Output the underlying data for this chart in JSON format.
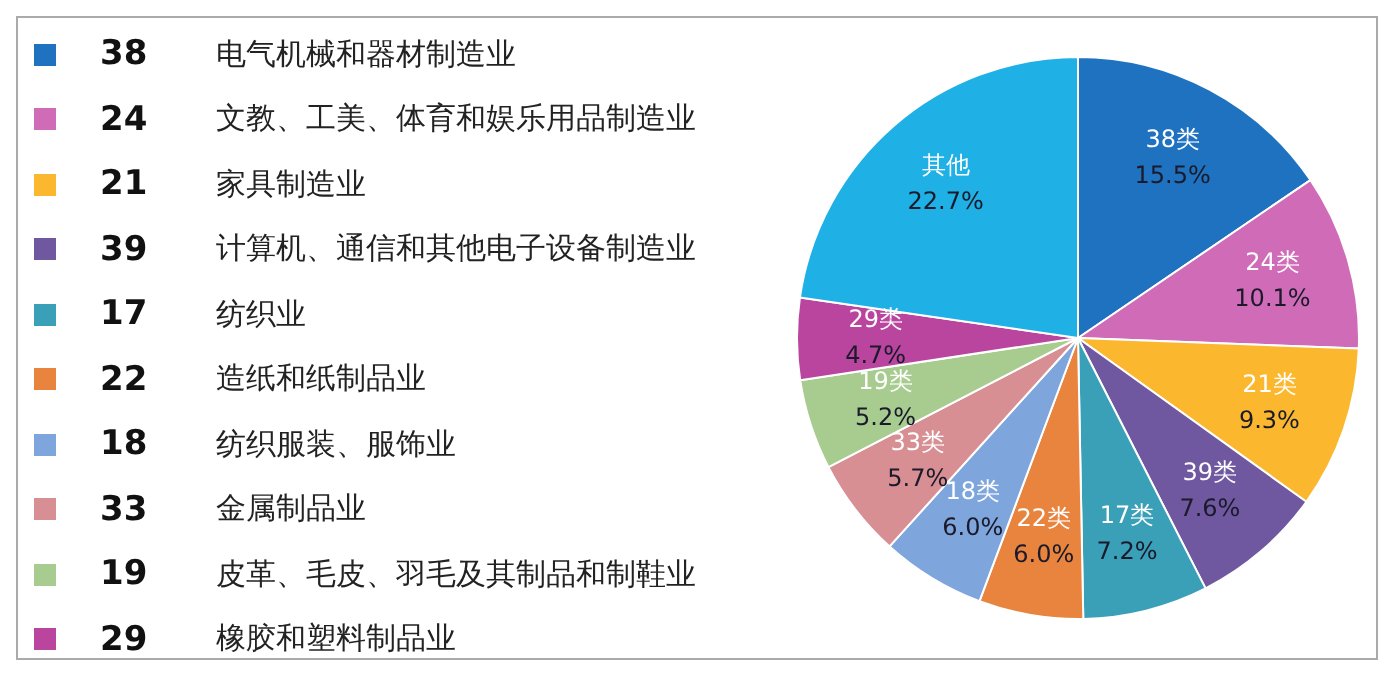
{
  "chart_data": {
    "type": "pie",
    "categories": [
      "38类",
      "24类",
      "21类",
      "39类",
      "17类",
      "22类",
      "18类",
      "33类",
      "19类",
      "29类",
      "其他"
    ],
    "values": [
      15.5,
      10.1,
      9.3,
      7.6,
      7.2,
      6.0,
      6.0,
      5.7,
      5.2,
      4.7,
      22.7
    ],
    "value_labels": [
      "15.5%",
      "10.1%",
      "9.3%",
      "7.6%",
      "7.2%",
      "6.0%",
      "6.0%",
      "5.7%",
      "5.2%",
      "4.7%",
      "22.7%"
    ],
    "colors": [
      "#1f72c0",
      "#d06bb8",
      "#fbb82e",
      "#6f58a0",
      "#3aa0b8",
      "#e8843e",
      "#7ea6dc",
      "#d88f93",
      "#a8cc90",
      "#b9459f",
      "#1fb0e6"
    ],
    "annotations": [
      "38",
      "电气机械和器材制造业",
      "24",
      "文教、工美、体育和娱乐用品制造业",
      "21",
      "家具制造业",
      "39",
      "计算机、通信和其他电子设备制造业",
      "17",
      "纺织业",
      "22",
      "造纸和纸制品业",
      "18",
      "纺织服装、服饰业",
      "33",
      "金属制品业",
      "19",
      "皮革、毛皮、羽毛及其制品和制鞋业",
      "29",
      "橡胶和塑料制品业"
    ]
  }
}
